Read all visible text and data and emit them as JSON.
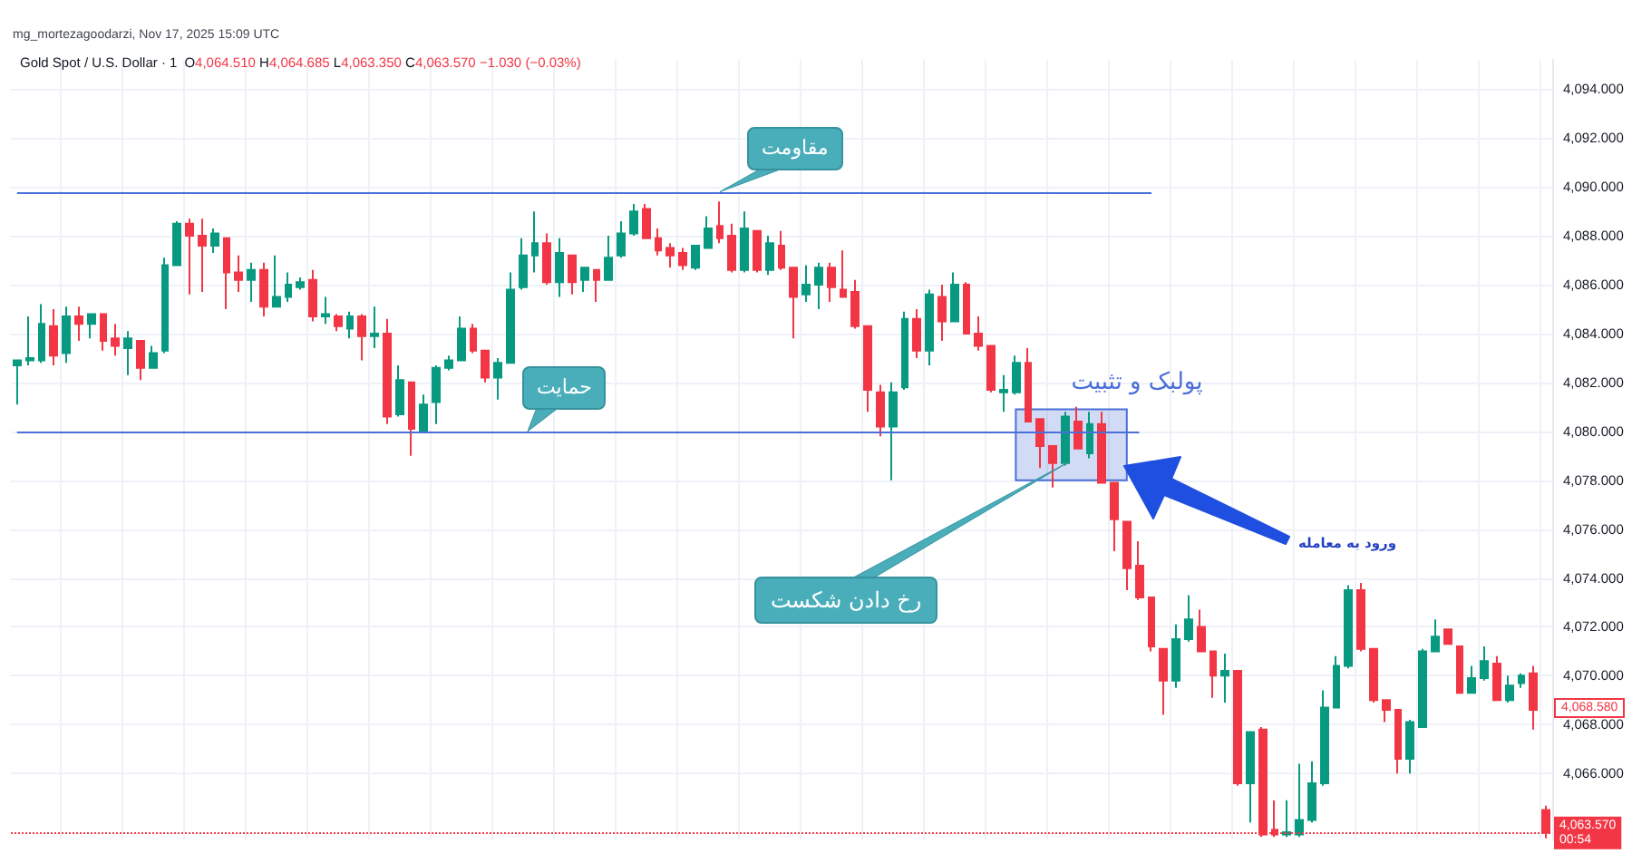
{
  "chart_data": {
    "type": "candlestick",
    "title": "Gold Spot / U.S. Dollar · 1",
    "subtitle": "O4,064.510 H4,064.685 L4,063.350 C4,063.570 −1.030 (−0.03%)",
    "categories": [
      null,
      null,
      null,
      null,
      null,
      null,
      null,
      null,
      null,
      null,
      null,
      null,
      null,
      null,
      null,
      null,
      null,
      null,
      null,
      null,
      null,
      null,
      null,
      null,
      null,
      null,
      null,
      null,
      null,
      null,
      null,
      null,
      null,
      null,
      null,
      null,
      null,
      null,
      null,
      null,
      null,
      null,
      null,
      null,
      null,
      null,
      null,
      null,
      null,
      null,
      null,
      null,
      null,
      null,
      null,
      null,
      null,
      null,
      null,
      null,
      null,
      null,
      null,
      null,
      null,
      null,
      null,
      null,
      null,
      null,
      null,
      null,
      null,
      null,
      null,
      null,
      null,
      null,
      null,
      null,
      null,
      null,
      null,
      null,
      null,
      null,
      null,
      null,
      null,
      null,
      null,
      null,
      null,
      null,
      null,
      null,
      null,
      null,
      null,
      null,
      null,
      null,
      null,
      null,
      null,
      null,
      null,
      null,
      null,
      null,
      null,
      null,
      null,
      null,
      null,
      null,
      null,
      null,
      null,
      null,
      null,
      null,
      null,
      null,
      null
    ],
    "ohlc": [
      [
        4082.7,
        4082.9,
        4081.1,
        4082.9
      ],
      [
        4082.9,
        4084.7,
        4082.7,
        4083.0
      ],
      [
        4082.9,
        4085.2,
        4082.8,
        4084.4
      ],
      [
        4084.3,
        4085.0,
        4082.7,
        4083.1
      ],
      [
        4083.2,
        4085.1,
        4082.8,
        4084.7
      ],
      [
        4084.7,
        4085.1,
        4083.7,
        4084.4
      ],
      [
        4084.4,
        4084.8,
        4083.8,
        4084.8
      ],
      [
        4084.8,
        4084.8,
        4083.3,
        4083.7
      ],
      [
        4083.8,
        4084.4,
        4083.1,
        4083.5
      ],
      [
        4083.4,
        4084.1,
        4082.3,
        4083.8
      ],
      [
        4083.7,
        4083.7,
        4082.1,
        4082.6
      ],
      [
        4082.6,
        4083.5,
        4082.6,
        4083.2
      ],
      [
        4083.3,
        4087.1,
        4083.2,
        4086.8
      ],
      [
        4086.8,
        4088.6,
        4086.8,
        4088.5
      ],
      [
        4088.5,
        4088.7,
        4085.6,
        4088.0
      ],
      [
        4088.0,
        4088.7,
        4085.7,
        4087.6
      ],
      [
        4087.6,
        4088.3,
        4087.3,
        4088.1
      ],
      [
        4087.9,
        4087.9,
        4085.0,
        4086.5
      ],
      [
        4086.5,
        4087.2,
        4085.7,
        4086.2
      ],
      [
        4086.2,
        4086.9,
        4085.3,
        4086.6
      ],
      [
        4086.6,
        4086.9,
        4084.7,
        4085.1
      ],
      [
        4085.1,
        4087.2,
        4085.1,
        4085.5
      ],
      [
        4085.5,
        4086.5,
        4085.3,
        4086.0
      ],
      [
        4085.9,
        4086.3,
        4085.8,
        4086.1
      ],
      [
        4086.2,
        4086.6,
        4084.5,
        4084.7
      ],
      [
        4084.7,
        4085.5,
        4084.4,
        4084.8
      ],
      [
        4084.7,
        4084.8,
        4084.1,
        4084.3
      ],
      [
        4084.2,
        4084.9,
        4083.8,
        4084.7
      ],
      [
        4084.7,
        4084.8,
        4082.9,
        4083.9
      ],
      [
        4083.9,
        4085.1,
        4083.4,
        4084.0
      ],
      [
        4084.0,
        4084.6,
        4080.3,
        4080.6
      ],
      [
        4080.7,
        4082.7,
        4080.6,
        4082.1
      ],
      [
        4082.0,
        4082.0,
        4079.0,
        4080.1
      ],
      [
        4080.0,
        4081.5,
        4080.0,
        4081.1
      ],
      [
        4081.2,
        4082.7,
        4080.3,
        4082.6
      ],
      [
        4082.6,
        4083.1,
        4082.5,
        4082.9
      ],
      [
        4082.9,
        4084.7,
        4082.9,
        4084.2
      ],
      [
        4084.2,
        4084.4,
        4083.2,
        4083.3
      ],
      [
        4083.3,
        4083.3,
        4082.0,
        4082.2
      ],
      [
        4082.2,
        4083.0,
        4081.3,
        4082.8
      ],
      [
        4082.8,
        4086.5,
        4082.8,
        4085.8
      ],
      [
        4085.9,
        4087.9,
        4085.8,
        4087.2
      ],
      [
        4087.2,
        4089.0,
        4086.5,
        4087.7
      ],
      [
        4087.7,
        4088.1,
        4086.0,
        4086.1
      ],
      [
        4086.1,
        4087.9,
        4085.5,
        4087.3
      ],
      [
        4087.2,
        4087.2,
        4085.6,
        4086.1
      ],
      [
        4086.2,
        4086.7,
        4085.7,
        4086.7
      ],
      [
        4086.6,
        4086.6,
        4085.3,
        4086.2
      ],
      [
        4086.2,
        4088.0,
        4086.2,
        4087.1
      ],
      [
        4087.2,
        4088.6,
        4087.1,
        4088.1
      ],
      [
        4088.1,
        4089.3,
        4088.0,
        4089.0
      ],
      [
        4089.1,
        4089.3,
        4087.9,
        4087.9
      ],
      [
        4087.9,
        4088.3,
        4087.2,
        4087.4
      ],
      [
        4087.5,
        4087.7,
        4086.7,
        4087.2
      ],
      [
        4087.3,
        4087.5,
        4086.6,
        4086.8
      ],
      [
        4086.7,
        4087.6,
        4086.6,
        4087.6
      ],
      [
        4087.5,
        4088.8,
        4087.5,
        4088.3
      ],
      [
        4088.4,
        4089.4,
        4087.7,
        4087.9
      ],
      [
        4088.0,
        4088.5,
        4086.5,
        4086.6
      ],
      [
        4086.6,
        4089.0,
        4086.5,
        4088.3
      ],
      [
        4088.2,
        4088.2,
        4086.5,
        4086.6
      ],
      [
        4086.6,
        4088.0,
        4086.4,
        4087.7
      ],
      [
        4087.6,
        4088.2,
        4086.6,
        4086.7
      ],
      [
        4086.7,
        4086.7,
        4083.8,
        4085.5
      ],
      [
        4085.6,
        4086.8,
        4085.3,
        4086.0
      ],
      [
        4086.0,
        4086.9,
        4085.0,
        4086.7
      ],
      [
        4086.7,
        4086.9,
        4085.3,
        4085.9
      ],
      [
        4085.8,
        4087.4,
        4085.5,
        4085.5
      ],
      [
        4085.7,
        4086.2,
        4084.2,
        4084.3
      ],
      [
        4084.3,
        4084.3,
        4080.8,
        4081.7
      ],
      [
        4081.6,
        4081.9,
        4079.8,
        4080.2
      ],
      [
        4080.2,
        4082.0,
        4078.0,
        4081.6
      ],
      [
        4081.8,
        4084.9,
        4081.7,
        4084.6
      ],
      [
        4084.6,
        4085.0,
        4083.0,
        4083.3
      ],
      [
        4083.3,
        4085.8,
        4082.7,
        4085.6
      ],
      [
        4085.5,
        4086.0,
        4083.7,
        4084.5
      ],
      [
        4084.5,
        4086.5,
        4084.5,
        4086.0
      ],
      [
        4086.0,
        4086.1,
        4084.0,
        4084.0
      ],
      [
        4084.0,
        4084.7,
        4083.3,
        4083.5
      ],
      [
        4083.5,
        4083.5,
        4081.6,
        4081.7
      ],
      [
        4081.6,
        4082.3,
        4080.8,
        4081.7
      ],
      [
        4081.6,
        4083.1,
        4081.5,
        4082.8
      ],
      [
        4082.8,
        4083.4,
        4080.4,
        4080.4
      ],
      [
        4080.5,
        4080.5,
        4078.5,
        4079.4
      ],
      [
        4079.4,
        4079.4,
        4077.7,
        4078.7
      ],
      [
        4078.7,
        4080.8,
        4078.6,
        4080.6
      ],
      [
        4080.4,
        4081.0,
        4079.3,
        4079.3
      ],
      [
        4079.1,
        4080.8,
        4078.9,
        4080.3
      ],
      [
        4080.3,
        4080.8,
        4077.9,
        4077.9
      ],
      [
        4077.9,
        4077.9,
        4075.1,
        4076.4
      ],
      [
        4076.3,
        4076.3,
        4073.5,
        4074.4
      ],
      [
        4074.5,
        4075.5,
        4073.1,
        4073.2
      ],
      [
        4073.2,
        4073.2,
        4071.0,
        4071.2
      ],
      [
        4071.1,
        4071.1,
        4068.4,
        4069.8
      ],
      [
        4069.8,
        4072.1,
        4069.5,
        4071.5
      ],
      [
        4071.5,
        4073.3,
        4071.4,
        4072.3
      ],
      [
        4072.0,
        4072.7,
        4071.0,
        4071.0
      ],
      [
        4071.0,
        4071.0,
        4069.1,
        4070.0
      ],
      [
        4070.0,
        4070.9,
        4068.9,
        4070.2
      ],
      [
        4070.2,
        4070.2,
        4065.5,
        4065.6
      ],
      [
        4065.6,
        4067.7,
        4064.0,
        4067.7
      ],
      [
        4067.8,
        4067.9,
        4063.4,
        4063.5
      ],
      [
        4063.7,
        4064.9,
        4063.4,
        4063.5
      ],
      [
        4063.5,
        4064.9,
        4063.4,
        4063.6
      ],
      [
        4063.5,
        4066.4,
        4063.4,
        4064.1
      ],
      [
        4064.1,
        4066.5,
        4064.0,
        4065.6
      ],
      [
        4065.6,
        4069.4,
        4065.5,
        4068.7
      ],
      [
        4068.7,
        4070.8,
        4068.7,
        4070.4
      ],
      [
        4070.4,
        4073.7,
        4070.3,
        4073.5
      ],
      [
        4073.5,
        4073.8,
        4071.0,
        4071.1
      ],
      [
        4071.1,
        4071.1,
        4068.9,
        4069.0
      ],
      [
        4069.0,
        4069.0,
        4068.1,
        4068.6
      ],
      [
        4068.6,
        4068.6,
        4066.0,
        4066.6
      ],
      [
        4066.6,
        4068.2,
        4066.0,
        4068.1
      ],
      [
        4067.9,
        4071.1,
        4067.9,
        4071.0
      ],
      [
        4071.0,
        4072.3,
        4071.0,
        4071.6
      ],
      [
        4071.9,
        4071.9,
        4071.3,
        4071.3
      ],
      [
        4071.2,
        4071.2,
        4069.3,
        4069.3
      ],
      [
        4069.3,
        4070.4,
        4069.3,
        4069.9
      ],
      [
        4069.9,
        4071.2,
        4069.8,
        4070.6
      ],
      [
        4070.5,
        4070.8,
        4069.0,
        4069.0
      ],
      [
        4069.0,
        4070.0,
        4068.9,
        4069.6
      ],
      [
        4069.7,
        4070.1,
        4069.5,
        4070.0
      ],
      [
        4070.1,
        4070.4,
        4067.8,
        4068.6
      ],
      [
        4064.51,
        4064.685,
        4063.35,
        4063.57
      ]
    ],
    "colors": [
      "#089981",
      "#089981",
      "#089981",
      "#f23645",
      "#089981",
      "#f23645",
      "#089981",
      "#f23645",
      "#f23645",
      "#089981",
      "#f23645",
      "#089981",
      "#089981",
      "#089981",
      "#f23645",
      "#f23645",
      "#089981",
      "#f23645",
      "#f23645",
      "#089981",
      "#f23645",
      "#089981",
      "#089981",
      "#089981",
      "#f23645",
      "#089981",
      "#f23645",
      "#089981",
      "#f23645",
      "#089981",
      "#f23645",
      "#089981",
      "#f23645",
      "#089981",
      "#089981",
      "#089981",
      "#089981",
      "#f23645",
      "#f23645",
      "#089981",
      "#089981",
      "#089981",
      "#089981",
      "#f23645",
      "#089981",
      "#f23645",
      "#089981",
      "#f23645",
      "#089981",
      "#089981",
      "#089981",
      "#f23645",
      "#f23645",
      "#f23645",
      "#f23645",
      "#089981",
      "#089981",
      "#f23645",
      "#f23645",
      "#089981",
      "#f23645",
      "#089981",
      "#f23645",
      "#f23645",
      "#089981",
      "#089981",
      "#f23645",
      "#f23645",
      "#f23645",
      "#f23645",
      "#f23645",
      "#089981",
      "#089981",
      "#f23645",
      "#089981",
      "#f23645",
      "#089981",
      "#f23645",
      "#f23645",
      "#f23645",
      "#089981",
      "#089981",
      "#f23645",
      "#f23645",
      "#f23645",
      "#089981",
      "#f23645",
      "#089981",
      "#f23645",
      "#f23645",
      "#f23645",
      "#f23645",
      "#f23645",
      "#f23645",
      "#089981",
      "#089981",
      "#f23645",
      "#f23645",
      "#089981",
      "#f23645",
      "#089981",
      "#f23645",
      "#f23645",
      "#089981",
      "#089981",
      "#089981",
      "#089981",
      "#089981",
      "#089981",
      "#f23645",
      "#f23645",
      "#f23645",
      "#f23645",
      "#089981",
      "#089981",
      "#089981",
      "#f23645",
      "#f23645",
      "#089981",
      "#089981",
      "#f23645",
      "#089981",
      "#089981",
      "#f23645",
      "#f23645"
    ],
    "ylim": [
      4063.3,
      4095.2
    ],
    "yticks": [
      {
        "value": 4066,
        "label": "4,066.000"
      },
      {
        "value": 4068,
        "label": "4,068.000"
      },
      {
        "value": 4070,
        "label": "4,070.000"
      },
      {
        "value": 4072,
        "label": "4,072.000"
      },
      {
        "value": 4074,
        "label": "4,074.000"
      },
      {
        "value": 4076,
        "label": "4,076.000"
      },
      {
        "value": 4078,
        "label": "4,078.000"
      },
      {
        "value": 4080,
        "label": "4,080.000"
      },
      {
        "value": 4082,
        "label": "4,082.000"
      },
      {
        "value": 4084,
        "label": "4,084.000"
      },
      {
        "value": 4086,
        "label": "4,086.000"
      },
      {
        "value": 4088,
        "label": "4,088.000"
      },
      {
        "value": 4090,
        "label": "4,090.000"
      },
      {
        "value": 4092,
        "label": "4,092.000"
      },
      {
        "value": 4094,
        "label": "4,094.000"
      }
    ],
    "tick_labels": "y",
    "grid": true,
    "ref_lines": [
      {
        "axis": "y",
        "value": 4089.8,
        "label": "مقاومت",
        "color": "#4a6fd8"
      },
      {
        "axis": "y",
        "value": 4080.0,
        "label": "حمایت",
        "color": "#4a6fd8"
      },
      {
        "axis": "y",
        "value": 4063.57,
        "label": "4,063.570\n00:54",
        "color": "#f23645",
        "line_style": "dotted"
      }
    ],
    "bands": [
      {
        "axis": "y",
        "from": 4078.0,
        "to": 4080.9,
        "label": "پولبک و تثبیت",
        "color": "#4a6fd8"
      }
    ],
    "annotations": [
      "mg_mortezagoodarzi, Nov 17, 2025 15:09 UTC",
      "رخ دادن شکست",
      "ورود به معامله",
      "4,068.580"
    ]
  }
}
